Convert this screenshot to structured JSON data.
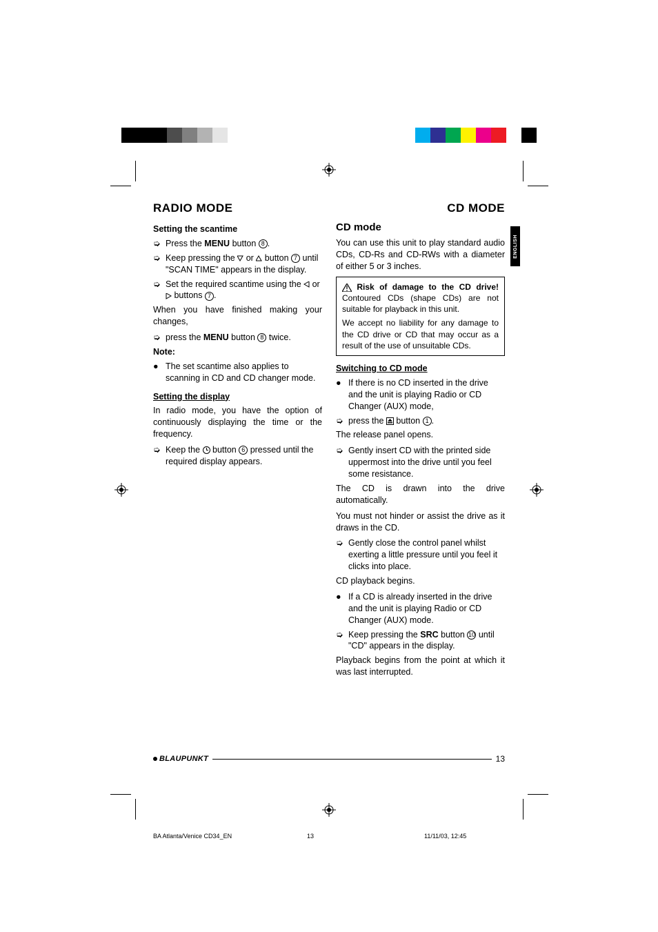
{
  "header": {
    "left": "RADIO MODE",
    "right": "CD MODE"
  },
  "langtab": "ENGLISH",
  "colorbars": {
    "left": [
      "#000000",
      "#000000",
      "#000000",
      "#4d4d4d",
      "#808080",
      "#b3b3b3",
      "#e5e5e5",
      "#ffffff",
      "#ffffff"
    ],
    "right": [
      "#ffffff",
      "#00adee",
      "#2e3092",
      "#00a650",
      "#fef200",
      "#ec008b",
      "#ed1b24",
      "#ffffff",
      "#000000"
    ]
  },
  "left_col": {
    "h_scantime": "Setting the scantime",
    "li1_a": "Press the ",
    "li1_b": "MENU",
    "li1_c": " button ",
    "li2_a": "Keep pressing the ",
    "li2_b": " or ",
    "li2_c": " button ",
    "li2_d": " until \"SCAN TIME\" appears in the display.",
    "li3_a": "Set the required scantime using the ",
    "li3_b": " or ",
    "li3_c": " buttons ",
    "p_finished": "When you have finished making your changes,",
    "li4_a": "press the ",
    "li4_b": "MENU",
    "li4_c": " button ",
    "li4_d": " twice.",
    "note_h": "Note:",
    "note_b": "The set scantime also applies to scanning in CD and CD changer mode.",
    "h_display": "Setting the display",
    "p_display": "In radio mode, you have the option of continuously displaying the time or the frequency.",
    "li5_a": "Keep the ",
    "li5_b": " button ",
    "li5_c": " pressed until the required display appears."
  },
  "right_col": {
    "h_cd": "CD mode",
    "p_intro": "You can use this unit to play standard audio CDs, CD-Rs and CD-RWs with a diameter of either 5 or 3 inches.",
    "warn_h": " Risk of damage to the CD drive!",
    "warn_b1": " Contoured CDs (shape CDs) are not suitable for playback in this unit.",
    "warn_b2": "We accept no liability for any damage to the CD drive or CD that may occur as a result of the use of unsuitable CDs.",
    "h_switch": "Switching to CD mode",
    "li1": "If there is no CD inserted in the drive and the unit is playing Radio or CD Changer (AUX) mode,",
    "li2_a": "press the ",
    "li2_b": " button ",
    "p_release": "The release panel opens.",
    "li3": "Gently insert CD with the printed side uppermost into the drive until you feel some resistance.",
    "p_drawn": "The CD is drawn into the drive automatically.",
    "p_hinder": "You must not hinder or assist the drive as it draws in the CD.",
    "li4": "Gently close the control panel whilst exerting a little pressure until you feel it clicks into place.",
    "p_begins": "CD playback begins.",
    "li5": "If a CD is already inserted in the drive and the unit is playing Radio or CD Changer (AUX) mode.",
    "li6_a": "Keep pressing the ",
    "li6_b": "SRC",
    "li6_c": " button ",
    "li6_d": " until \"CD\" appears in the display.",
    "p_resume": "Playback begins from the point at which it was last interrupted."
  },
  "footer": {
    "brand": "BLAUPUNKT",
    "page": "13"
  },
  "imprint": {
    "file": "BA Atlanta/Venice CD34_EN",
    "page": "13",
    "date": "11/11/03, 12:45"
  },
  "refs": {
    "n1": "1",
    "n6": "6",
    "n7": "7",
    "n8": "8",
    "n10": "10"
  }
}
